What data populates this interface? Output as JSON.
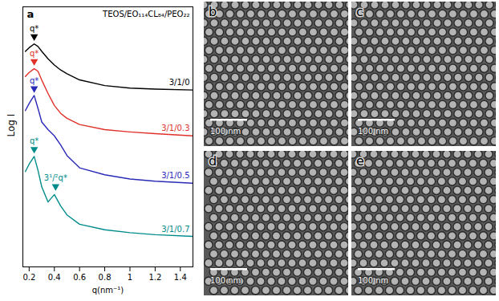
{
  "chart_data": {
    "type": "line",
    "panel": "a",
    "title": "TEOS/EO₁₁₄CL₈₄/PEO₂₂",
    "x_label": "q(nm⁻¹)",
    "y_label": "Log I",
    "xlim": [
      0.15,
      1.5
    ],
    "xticks": [
      0.2,
      0.4,
      0.6,
      0.8,
      1.0,
      1.2,
      1.4
    ],
    "ylim": [
      0,
      10.5
    ],
    "yticks": [],
    "tick_labels": "x",
    "x": [
      0.17,
      0.2,
      0.24,
      0.27,
      0.3,
      0.35,
      0.4,
      0.45,
      0.5,
      0.6,
      0.8,
      1.0,
      1.2,
      1.5
    ],
    "series": [
      {
        "name": "3/1/0",
        "color": "#000000",
        "values": [
          8.7,
          8.85,
          9.0,
          8.9,
          8.7,
          8.4,
          8.15,
          7.95,
          7.8,
          7.55,
          7.32,
          7.22,
          7.18,
          7.14
        ]
      },
      {
        "name": "3/1/0.3",
        "color": "#e0302a",
        "values": [
          7.69,
          7.85,
          8.0,
          7.9,
          7.54,
          7.0,
          6.52,
          6.2,
          6.0,
          5.75,
          5.54,
          5.45,
          5.38,
          5.29
        ]
      },
      {
        "name": "3/1/0.5",
        "color": "#2a2ab8",
        "values": [
          6.31,
          6.6,
          6.92,
          6.4,
          5.85,
          5.54,
          5.29,
          4.92,
          4.5,
          4.0,
          3.72,
          3.55,
          3.46,
          3.38
        ]
      },
      {
        "name": "3/1/0.7",
        "color": "#008b8b",
        "values": [
          3.85,
          4.15,
          4.46,
          3.9,
          3.23,
          2.62,
          2.92,
          2.46,
          2.1,
          1.72,
          1.5,
          1.38,
          1.3,
          1.23
        ]
      }
    ],
    "annotations": [
      {
        "text": "q*",
        "x": 0.24,
        "y": 9.3,
        "series": "3/1/0"
      },
      {
        "text": "q*",
        "x": 0.24,
        "y": 8.3,
        "series": "3/1/0.3"
      },
      {
        "text": "q*",
        "x": 0.24,
        "y": 7.2,
        "series": "3/1/0.5"
      },
      {
        "text": "q*",
        "x": 0.24,
        "y": 4.75,
        "series": "3/1/0.7"
      },
      {
        "text": "3¹/²q*",
        "x": 0.41,
        "y": 3.25,
        "series": "3/1/0.7"
      }
    ]
  },
  "images": [
    {
      "panel": "b",
      "scale_bar": "100 nm"
    },
    {
      "panel": "c",
      "scale_bar": "100 nm"
    },
    {
      "panel": "d",
      "scale_bar": "100 nm"
    },
    {
      "panel": "e",
      "scale_bar": "100 nm"
    }
  ]
}
